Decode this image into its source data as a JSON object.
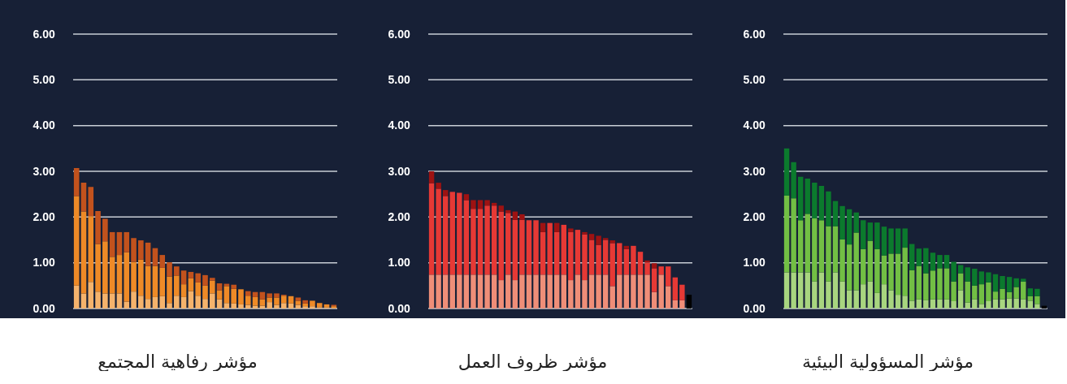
{
  "chart_data": [
    {
      "type": "bar",
      "title": "مؤشر رفاهية المجتمع",
      "stacked": true,
      "grid": "y",
      "tick_labels": "y",
      "ylim": [
        0,
        6
      ],
      "yticks": [
        {
          "value": 0,
          "label": "0.00"
        },
        {
          "value": 1,
          "label": "1.00"
        },
        {
          "value": 2,
          "label": "2.00"
        },
        {
          "value": 3,
          "label": "3.00"
        },
        {
          "value": 4,
          "label": "4.00"
        },
        {
          "value": 5,
          "label": "5.00"
        },
        {
          "value": 6,
          "label": "6.00"
        }
      ],
      "categories": [
        null,
        null,
        null,
        null,
        null,
        null,
        null,
        null,
        null,
        null,
        null,
        null,
        null,
        null,
        null,
        null,
        null,
        null,
        null,
        null,
        null,
        null,
        null,
        null,
        null,
        null,
        null,
        null,
        null,
        null,
        null,
        null,
        null,
        null,
        null,
        null,
        null
      ],
      "series": [
        {
          "color": "#f5b36c",
          "values": [
            0.5,
            0.33,
            0.58,
            0.37,
            0.33,
            0.33,
            0.33,
            0.15,
            0.37,
            0.28,
            0.21,
            0.25,
            0.27,
            0.12,
            0.28,
            0.25,
            0.38,
            0.28,
            0.21,
            0.33,
            0.2,
            0.12,
            0.11,
            0.09,
            0.08,
            0.06,
            0.06,
            0.14,
            0.08,
            0.12,
            0.11,
            0.08,
            0.05,
            0.05,
            0.03,
            0.03,
            0.01
          ]
        },
        {
          "color": "#ee8a27",
          "values": [
            1.96,
            1.79,
            1.44,
            1.04,
            1.14,
            0.8,
            0.84,
            1.08,
            0.65,
            0.79,
            0.72,
            0.68,
            0.62,
            0.58,
            0.44,
            0.28,
            0.28,
            0.29,
            0.29,
            0.28,
            0.2,
            0.37,
            0.32,
            0.33,
            0.2,
            0.19,
            0.14,
            0.1,
            0.16,
            0.16,
            0.16,
            0.09,
            0.06,
            0.12,
            0.09,
            0.06,
            0.04
          ]
        },
        {
          "color": "#c2521d",
          "values": [
            0.61,
            0.63,
            0.64,
            0.72,
            0.49,
            0.54,
            0.5,
            0.44,
            0.52,
            0.42,
            0.51,
            0.39,
            0.28,
            0.31,
            0.2,
            0.3,
            0.14,
            0.2,
            0.23,
            0.06,
            0.15,
            0.05,
            0.09,
            null,
            0.1,
            0.11,
            0.16,
            0.09,
            0.09,
            0.02,
            null,
            0.07,
            0.07,
            null,
            null,
            null,
            0.03
          ]
        }
      ]
    },
    {
      "type": "bar",
      "title": "مؤشر ظروف العمل",
      "stacked": true,
      "grid": "y",
      "tick_labels": "y",
      "ylim": [
        0,
        6
      ],
      "yticks": [
        {
          "value": 0,
          "label": "0.00"
        },
        {
          "value": 1,
          "label": "1.00"
        },
        {
          "value": 2,
          "label": "2.00"
        },
        {
          "value": 3,
          "label": "3.00"
        },
        {
          "value": 4,
          "label": "4.00"
        },
        {
          "value": 5,
          "label": "5.00"
        },
        {
          "value": 6,
          "label": "6.00"
        }
      ],
      "categories": [
        null,
        null,
        null,
        null,
        null,
        null,
        null,
        null,
        null,
        null,
        null,
        null,
        null,
        null,
        null,
        null,
        null,
        null,
        null,
        null,
        null,
        null,
        null,
        null,
        null,
        null,
        null,
        null,
        null,
        null,
        null,
        null,
        null,
        null,
        null,
        null,
        null,
        null
      ],
      "series": [
        {
          "color": "#ef8e78",
          "values": [
            0.74,
            0.74,
            0.74,
            0.74,
            0.74,
            0.74,
            0.74,
            0.74,
            0.74,
            0.74,
            0.62,
            0.74,
            0.62,
            0.74,
            0.74,
            0.74,
            0.74,
            0.74,
            0.74,
            0.74,
            0.62,
            0.74,
            0.62,
            0.74,
            0.74,
            0.74,
            0.49,
            0.74,
            0.74,
            0.74,
            0.74,
            0.74,
            0.36,
            0.74,
            0.49,
            0.18,
            0.18,
            null
          ]
        },
        {
          "color": "#e63935",
          "values": [
            2.0,
            1.88,
            1.72,
            1.81,
            1.79,
            1.63,
            1.44,
            1.44,
            1.51,
            1.51,
            1.5,
            1.35,
            1.32,
            1.2,
            1.19,
            1.19,
            0.93,
            1.13,
            0.93,
            1.09,
            1.05,
            0.98,
            1.0,
            0.76,
            0.65,
            0.76,
            0.94,
            0.69,
            0.56,
            0.63,
            0.5,
            0.26,
            0.52,
            0.18,
            0.43,
            0.5,
            0.34,
            null
          ]
        },
        {
          "color": "#9e1212",
          "values": [
            0.26,
            0.13,
            0.13,
            null,
            null,
            0.13,
            0.19,
            0.19,
            0.12,
            0.06,
            0.13,
            0.06,
            0.18,
            0.12,
            null,
            null,
            0.2,
            null,
            0.2,
            null,
            0.08,
            null,
            0.05,
            0.13,
            0.2,
            0.04,
            0.06,
            null,
            0.07,
            null,
            null,
            0.05,
            0.11,
            null,
            null,
            null,
            null,
            null
          ]
        },
        {
          "color": "#000000",
          "values": [
            null,
            null,
            null,
            null,
            null,
            null,
            null,
            null,
            null,
            null,
            null,
            null,
            null,
            null,
            null,
            null,
            null,
            null,
            null,
            null,
            null,
            null,
            null,
            null,
            null,
            null,
            null,
            null,
            null,
            null,
            null,
            null,
            null,
            null,
            null,
            null,
            null,
            0.3
          ]
        }
      ]
    },
    {
      "type": "bar",
      "title": "مؤشر المسؤولية البيئية",
      "stacked": true,
      "grid": "y",
      "tick_labels": "y",
      "ylim": [
        0,
        6
      ],
      "yticks": [
        {
          "value": 0,
          "label": "0.00"
        },
        {
          "value": 1,
          "label": "1.00"
        },
        {
          "value": 2,
          "label": "2.00"
        },
        {
          "value": 3,
          "label": "3.00"
        },
        {
          "value": 4,
          "label": "4.00"
        },
        {
          "value": 5,
          "label": "5.00"
        },
        {
          "value": 6,
          "label": "6.00"
        }
      ],
      "categories": [
        null,
        null,
        null,
        null,
        null,
        null,
        null,
        null,
        null,
        null,
        null,
        null,
        null,
        null,
        null,
        null,
        null,
        null,
        null,
        null,
        null,
        null,
        null,
        null,
        null,
        null,
        null,
        null,
        null,
        null,
        null,
        null,
        null,
        null,
        null,
        null,
        null,
        null
      ],
      "series": [
        {
          "color": "#a8d57f",
          "values": [
            0.79,
            0.79,
            0.79,
            0.79,
            0.59,
            0.79,
            0.59,
            0.79,
            0.59,
            0.4,
            0.4,
            0.53,
            0.59,
            0.34,
            0.53,
            0.4,
            0.3,
            0.28,
            0.17,
            0.2,
            0.18,
            0.2,
            0.2,
            0.2,
            0.16,
            0.4,
            0.13,
            0.2,
            0.1,
            0.16,
            0.2,
            0.2,
            0.22,
            0.22,
            0.2,
            0.17,
            0.1,
            null
          ]
        },
        {
          "color": "#72bf44",
          "values": [
            1.68,
            1.62,
            1.14,
            1.28,
            1.38,
            1.14,
            1.21,
            1.01,
            0.92,
            1.0,
            1.26,
            0.77,
            0.89,
            0.96,
            0.63,
            0.8,
            0.9,
            1.05,
            0.67,
            0.73,
            0.59,
            0.63,
            0.68,
            0.68,
            0.43,
            0.37,
            0.46,
            0.3,
            0.43,
            0.41,
            0.17,
            0.23,
            0.14,
            0.25,
            0.39,
            0.1,
            0.17,
            null
          ]
        },
        {
          "color": "#0b7a2d",
          "values": [
            1.03,
            0.79,
            0.95,
            0.77,
            0.78,
            0.75,
            0.76,
            0.55,
            0.73,
            0.77,
            0.44,
            0.63,
            0.4,
            0.58,
            0.63,
            0.55,
            0.55,
            0.42,
            0.57,
            0.38,
            0.55,
            0.39,
            0.29,
            0.29,
            0.43,
            0.18,
            0.31,
            0.37,
            0.28,
            0.22,
            0.38,
            0.28,
            0.33,
            0.19,
            0.06,
            0.17,
            0.16,
            null
          ]
        },
        {
          "color": "#000000",
          "values": [
            null,
            null,
            null,
            null,
            null,
            null,
            null,
            null,
            null,
            null,
            null,
            null,
            null,
            null,
            null,
            null,
            null,
            null,
            null,
            null,
            null,
            null,
            null,
            null,
            null,
            null,
            null,
            null,
            null,
            null,
            null,
            null,
            null,
            null,
            null,
            null,
            null,
            0.06
          ]
        }
      ]
    }
  ]
}
